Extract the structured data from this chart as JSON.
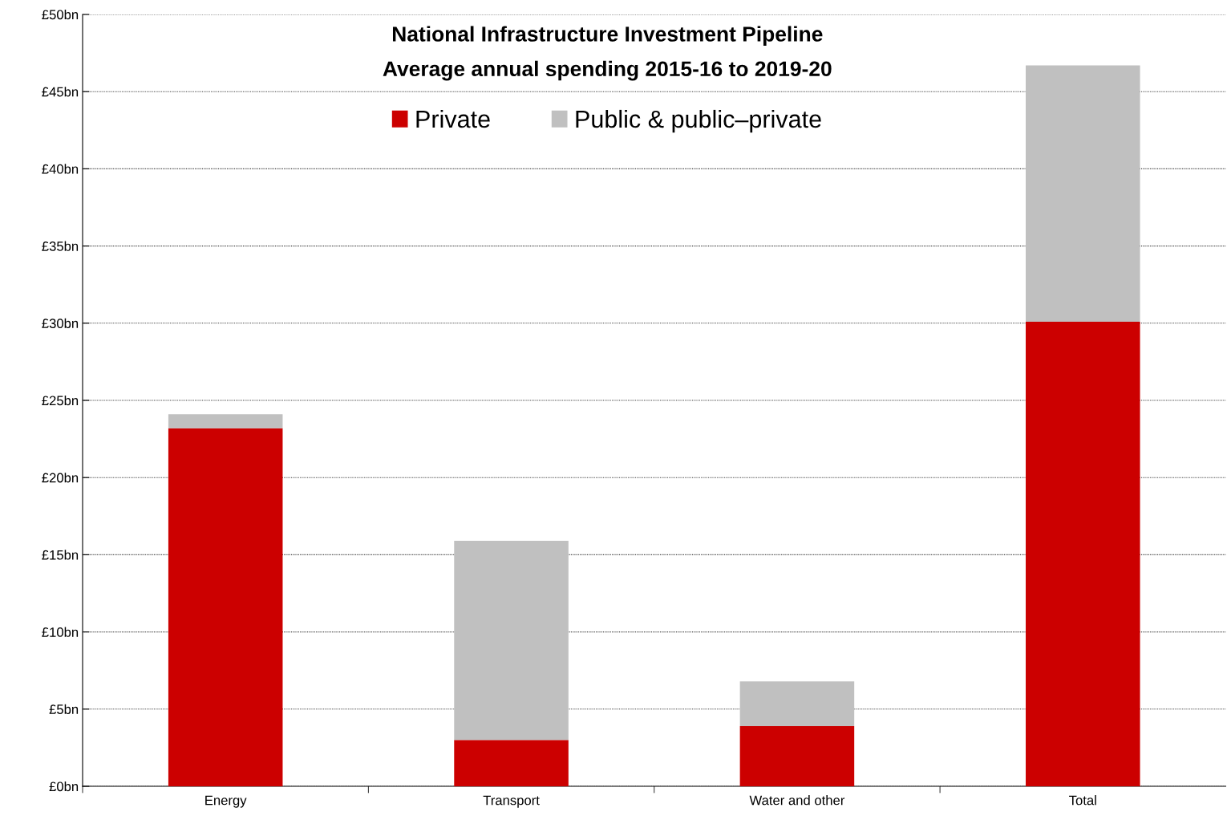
{
  "chart_data": {
    "type": "bar",
    "title": "National Infrastructure Investment Pipeline",
    "subtitle": "Average annual spending 2015-16 to 2019-20",
    "categories": [
      "Energy",
      "Transport",
      "Water and other",
      "Total"
    ],
    "stacked": true,
    "series": [
      {
        "name": "Private",
        "color": "#cc0000",
        "values": [
          23.2,
          3.0,
          3.9,
          30.1
        ]
      },
      {
        "name": "Public & public–private",
        "color": "#c0c0c0",
        "values": [
          0.9,
          12.9,
          2.9,
          16.6
        ]
      }
    ],
    "ylim": [
      0,
      50
    ],
    "yticks": [
      {
        "value": 0,
        "label": "£0bn"
      },
      {
        "value": 5,
        "label": "£5bn"
      },
      {
        "value": 10,
        "label": "£10bn"
      },
      {
        "value": 15,
        "label": "£15bn"
      },
      {
        "value": 20,
        "label": "£20bn"
      },
      {
        "value": 25,
        "label": "£25bn"
      },
      {
        "value": 30,
        "label": "£30bn"
      },
      {
        "value": 35,
        "label": "£35bn"
      },
      {
        "value": 40,
        "label": "£40bn"
      },
      {
        "value": 45,
        "label": "£45bn"
      },
      {
        "value": 50,
        "label": "£50bn"
      }
    ],
    "grid": "y",
    "legend": "top"
  }
}
